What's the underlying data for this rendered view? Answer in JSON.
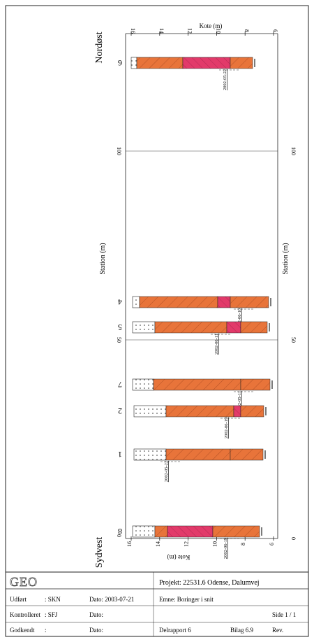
{
  "plot": {
    "title_top": "Kote (m)",
    "title_bottom": "Kote (m)",
    "station_label": "Station (m)",
    "direction_top": "Nordøst",
    "direction_bottom": "Sydvest",
    "kote_ticks_top": [
      "16",
      "14",
      "12",
      "10",
      "8",
      "6"
    ],
    "kote_ticks_bottom": [
      "16",
      "14",
      "12",
      "10",
      "8",
      "6"
    ],
    "station_ticks": [
      "100",
      "50",
      "0"
    ],
    "station_ticks_right": [
      "100",
      "50",
      "0"
    ]
  },
  "boreholes": [
    {
      "id": "6",
      "date": "2002-05-22"
    },
    {
      "id": "4",
      "date": "2002-06-10"
    },
    {
      "id": "5",
      "date": "2002-06-11"
    },
    {
      "id": "7",
      "date": "2002-05-11"
    },
    {
      "id": "2",
      "date": "2002-06-19"
    },
    {
      "id": "1",
      "date": "2002-05-22"
    },
    {
      "id": "8",
      "date": "2002-06-19"
    }
  ],
  "colors": {
    "orange": "#e8743a",
    "pink": "#e23a6a",
    "line": "#222222",
    "grid": "#444444"
  },
  "title_block": {
    "logo": "GEO",
    "project": "Projekt: 22531.6 Odense, Dalumvej",
    "udfort_label": "Udført",
    "udfort_value": ": SKN",
    "dato1": "Dato: 2003-07-21",
    "emne": "Emne: Boringer i snit",
    "kontrolleret_label": "Kontrolleret",
    "kontrolleret_value": ": SFJ",
    "dato2": "Dato:",
    "side": "Side 1 / 1",
    "godkendt_label": "Godkendt",
    "godkendt_value": ":",
    "dato3": "Dato:",
    "delrapport": "Delrapport 6",
    "bilag": "Bilag 6.9",
    "rev": "Rev."
  }
}
